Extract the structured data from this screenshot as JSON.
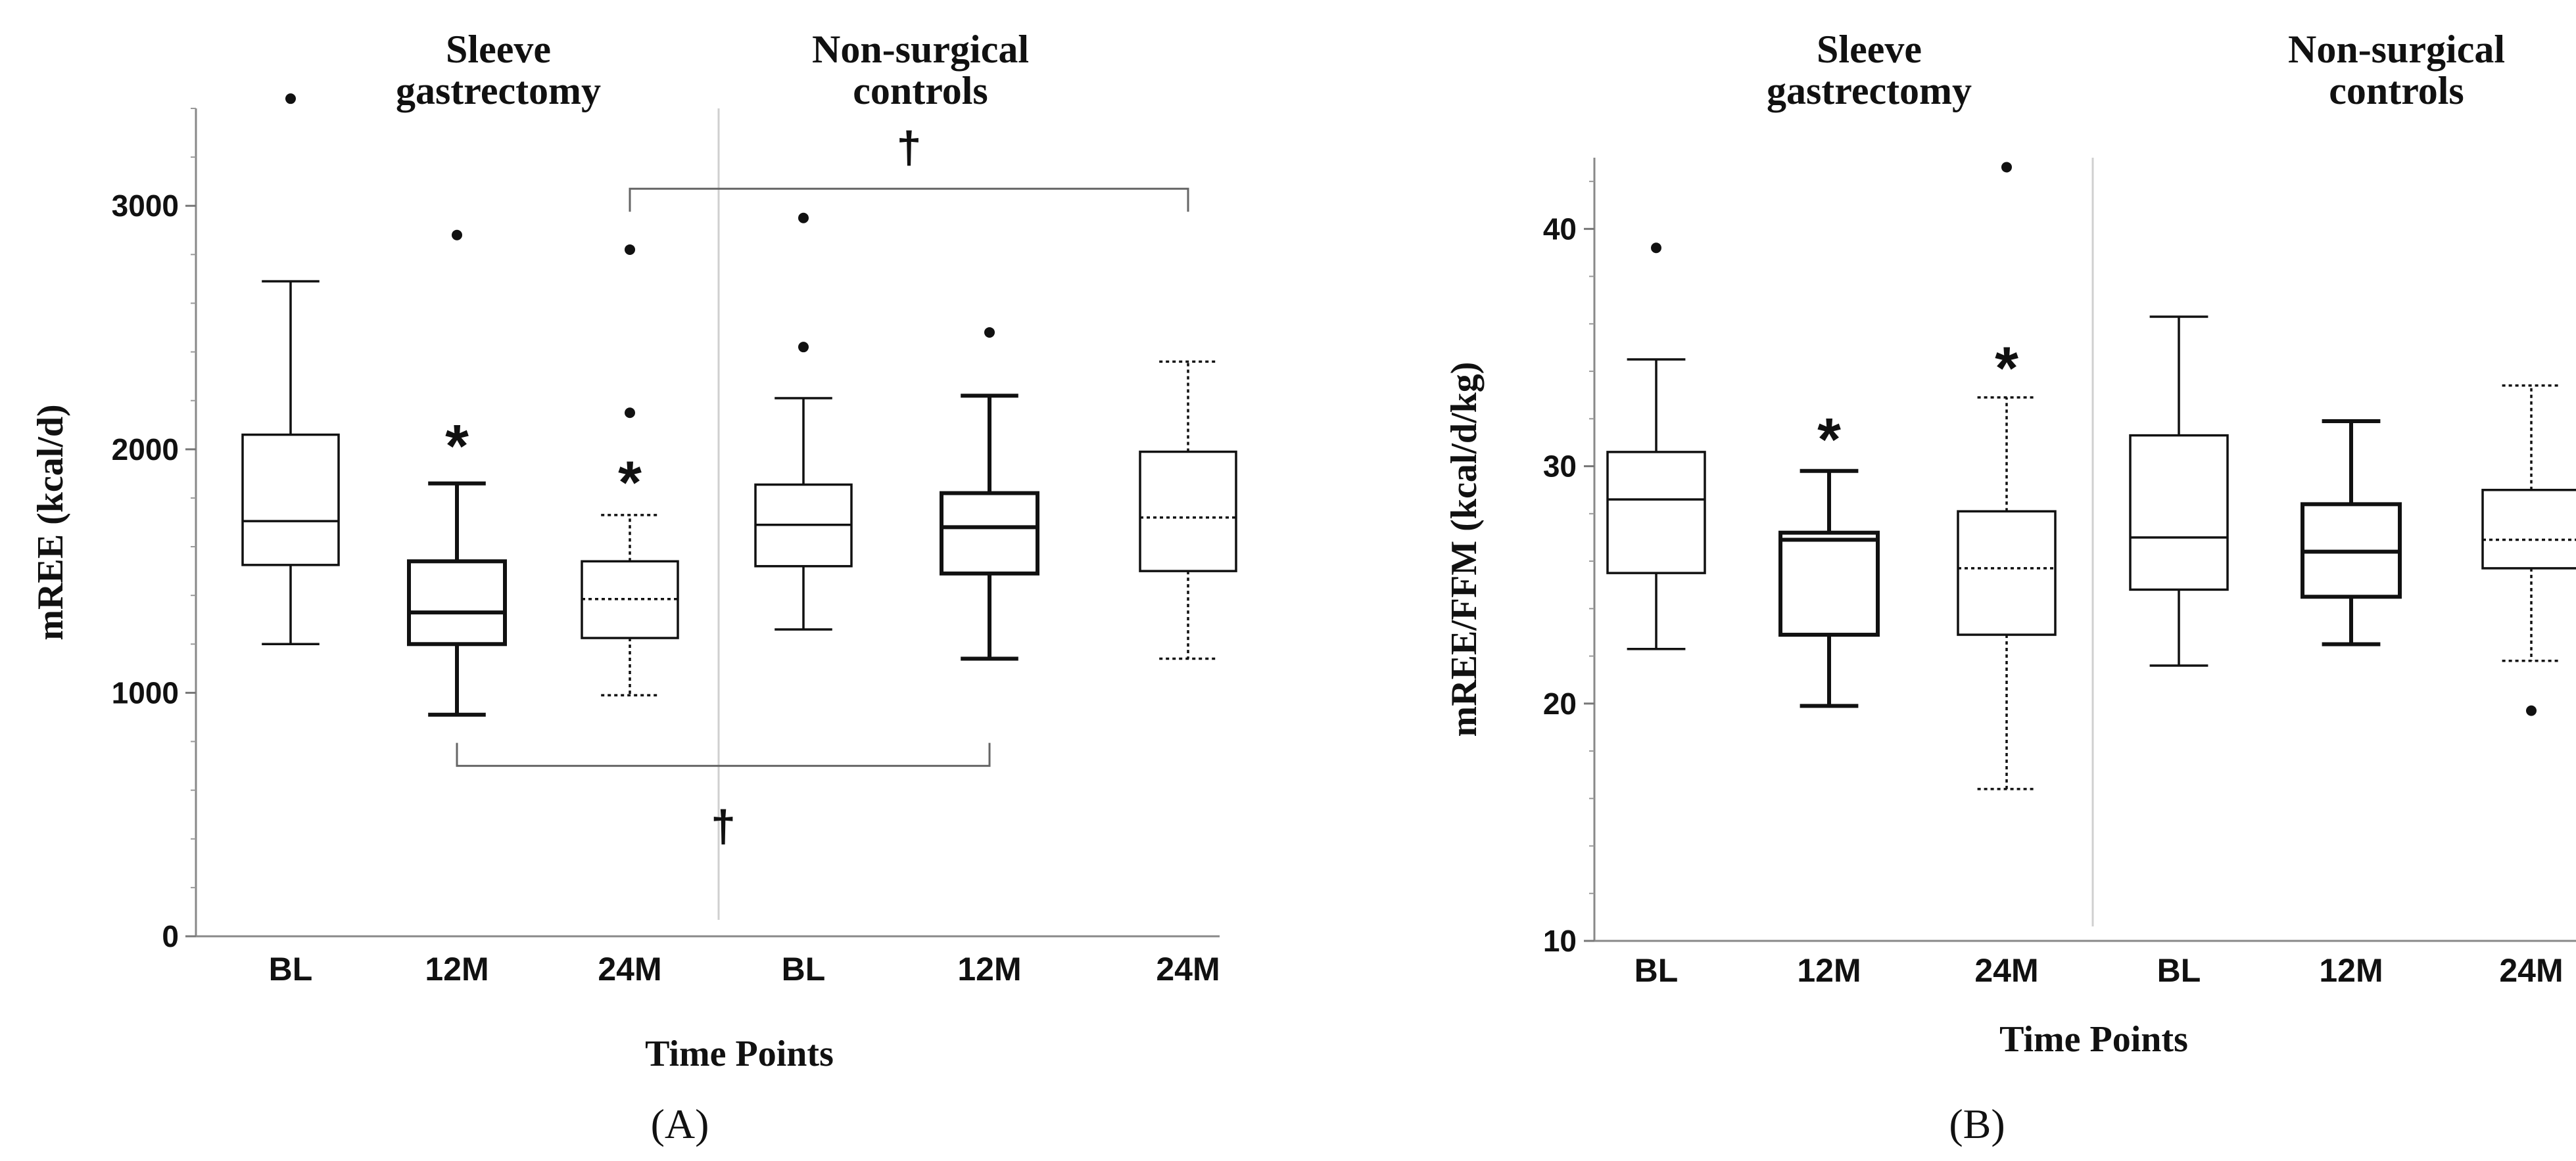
{
  "chart_data": [
    {
      "type": "box",
      "panel_label": "(A)",
      "title": "",
      "xlabel": "Time Points",
      "ylabel": "mREE (kcal/d)",
      "ylim": [
        0,
        3400
      ],
      "yticks": [
        0,
        1000,
        2000,
        3000
      ],
      "ytick_labels": [
        "0",
        "1000",
        "2000",
        "3000"
      ],
      "groups": [
        {
          "name": "Sleeve\ngastrectomy",
          "lines": [
            "Sleeve",
            "gastrectomy"
          ]
        },
        {
          "name": "Non-surgical\ncontrols",
          "lines": [
            "Non-surgical",
            "controls"
          ]
        }
      ],
      "categories": [
        "BL",
        "12M",
        "24M",
        "BL",
        "12M",
        "24M"
      ],
      "boxes": [
        {
          "label": "BL",
          "group": 0,
          "whisker_low": 1200,
          "q1": 1525,
          "median": 1705,
          "q3": 2060,
          "whisker_high": 2690,
          "outliers": [
            3440
          ],
          "style": "solid",
          "weight": "thin"
        },
        {
          "label": "12M",
          "group": 0,
          "whisker_low": 910,
          "q1": 1200,
          "median": 1330,
          "q3": 1540,
          "whisker_high": 1860,
          "outliers": [
            2880
          ],
          "style": "solid",
          "weight": "bold"
        },
        {
          "label": "24M",
          "group": 0,
          "whisker_low": 990,
          "q1": 1225,
          "median": 1385,
          "q3": 1540,
          "whisker_high": 1730,
          "outliers": [
            2820,
            2150
          ],
          "style": "dotted",
          "weight": "thin"
        },
        {
          "label": "BL",
          "group": 1,
          "whisker_low": 1260,
          "q1": 1520,
          "median": 1690,
          "q3": 1855,
          "whisker_high": 2210,
          "outliers": [
            2950,
            2420
          ],
          "style": "solid",
          "weight": "thin"
        },
        {
          "label": "12M",
          "group": 1,
          "whisker_low": 1140,
          "q1": 1490,
          "median": 1680,
          "q3": 1820,
          "whisker_high": 2220,
          "outliers": [
            2480
          ],
          "style": "solid",
          "weight": "bold"
        },
        {
          "label": "24M",
          "group": 1,
          "whisker_low": 1140,
          "q1": 1500,
          "median": 1720,
          "q3": 1990,
          "whisker_high": 2360,
          "outliers": [],
          "style": "dotted",
          "weight": "thin"
        }
      ],
      "annotations": [
        {
          "symbol": "*",
          "box": 1,
          "value": 2050
        },
        {
          "symbol": "*",
          "box": 2,
          "value": 1900
        },
        {
          "symbol": "†",
          "bracket": [
            2,
            5
          ],
          "value": 3070,
          "side": "top"
        },
        {
          "symbol": "†",
          "bracket": [
            1,
            4
          ],
          "value": 700,
          "side": "bottom"
        }
      ]
    },
    {
      "type": "box",
      "panel_label": "(B)",
      "title": "",
      "xlabel": "Time Points",
      "ylabel": "mREE/FFM  (kcal/d/kg)",
      "ylim": [
        10,
        43
      ],
      "yticks": [
        10,
        20,
        30,
        40
      ],
      "ytick_labels": [
        "10",
        "20",
        "30",
        "40"
      ],
      "groups": [
        {
          "name": "Sleeve\ngastrectomy",
          "lines": [
            "Sleeve",
            "gastrectomy"
          ]
        },
        {
          "name": "Non-surgical\ncontrols",
          "lines": [
            "Non-surgical",
            "controls"
          ]
        }
      ],
      "categories": [
        "BL",
        "12M",
        "24M",
        "BL",
        "12M",
        "24M"
      ],
      "boxes": [
        {
          "label": "BL",
          "group": 0,
          "whisker_low": 22.3,
          "q1": 25.5,
          "median": 28.6,
          "q3": 30.6,
          "whisker_high": 34.5,
          "outliers": [
            39.2
          ],
          "style": "solid",
          "weight": "thin"
        },
        {
          "label": "12M",
          "group": 0,
          "whisker_low": 19.9,
          "q1": 22.9,
          "median": 26.9,
          "q3": 27.2,
          "whisker_high": 29.8,
          "outliers": [],
          "style": "solid",
          "weight": "bold"
        },
        {
          "label": "24M",
          "group": 0,
          "whisker_low": 16.4,
          "q1": 22.9,
          "median": 25.7,
          "q3": 28.1,
          "whisker_high": 32.9,
          "outliers": [
            42.6
          ],
          "style": "dotted",
          "weight": "thin"
        },
        {
          "label": "BL",
          "group": 1,
          "whisker_low": 21.6,
          "q1": 24.8,
          "median": 27.0,
          "q3": 31.3,
          "whisker_high": 36.3,
          "outliers": [],
          "style": "solid",
          "weight": "thin"
        },
        {
          "label": "12M",
          "group": 1,
          "whisker_low": 22.5,
          "q1": 24.5,
          "median": 26.4,
          "q3": 28.4,
          "whisker_high": 31.9,
          "outliers": [],
          "style": "solid",
          "weight": "bold"
        },
        {
          "label": "24M",
          "group": 1,
          "whisker_low": 21.8,
          "q1": 25.7,
          "median": 26.9,
          "q3": 29.0,
          "whisker_high": 33.4,
          "outliers": [
            19.7
          ],
          "style": "dotted",
          "weight": "thin"
        }
      ],
      "annotations": [
        {
          "symbol": "*",
          "box": 1,
          "value": 31.5
        },
        {
          "symbol": "*",
          "box": 2,
          "value": 34.5
        }
      ]
    }
  ]
}
